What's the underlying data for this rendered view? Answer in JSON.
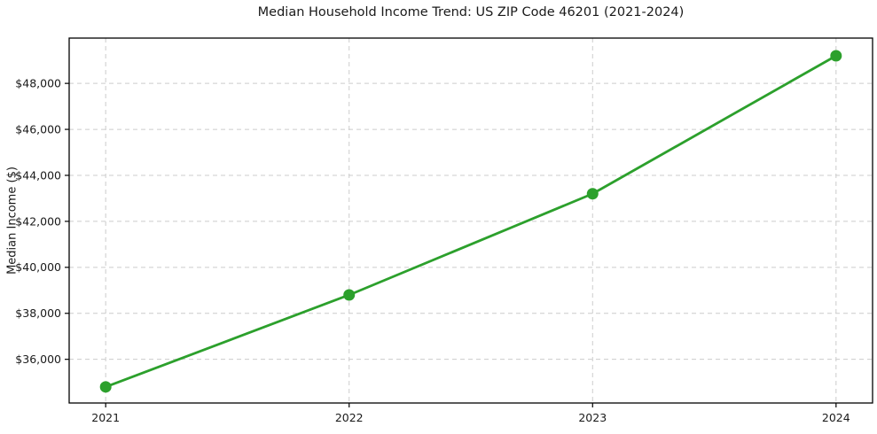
{
  "colors": {
    "line": "#2ca02c",
    "marker": "#2ca02c",
    "grid": "#cccccc",
    "axis": "#000000",
    "text": "#1a1a1a",
    "background": "#ffffff"
  },
  "chart_data": {
    "type": "line",
    "title": "Median Household Income Trend: US ZIP Code 46201 (2021-2024)",
    "xlabel": "",
    "ylabel": "Median Income ($)",
    "x": [
      2021,
      2022,
      2023,
      2024
    ],
    "series": [
      {
        "name": "Median Household Income",
        "values": [
          34800,
          38800,
          43200,
          49200
        ]
      }
    ],
    "x_ticks": [
      {
        "v": 2021,
        "label": "2021"
      },
      {
        "v": 2022,
        "label": "2022"
      },
      {
        "v": 2023,
        "label": "2023"
      },
      {
        "v": 2024,
        "label": "2024"
      }
    ],
    "y_ticks": [
      {
        "v": 36000,
        "label": "$36,000"
      },
      {
        "v": 38000,
        "label": "$38,000"
      },
      {
        "v": 40000,
        "label": "$40,000"
      },
      {
        "v": 42000,
        "label": "$42,000"
      },
      {
        "v": 44000,
        "label": "$44,000"
      },
      {
        "v": 46000,
        "label": "$46,000"
      },
      {
        "v": 48000,
        "label": "$48,000"
      }
    ],
    "xlim": [
      2020.85,
      2024.15
    ],
    "ylim": [
      34100,
      49970
    ],
    "grid": true,
    "grid_style": "dashed",
    "legend": "none",
    "marker": "o"
  }
}
